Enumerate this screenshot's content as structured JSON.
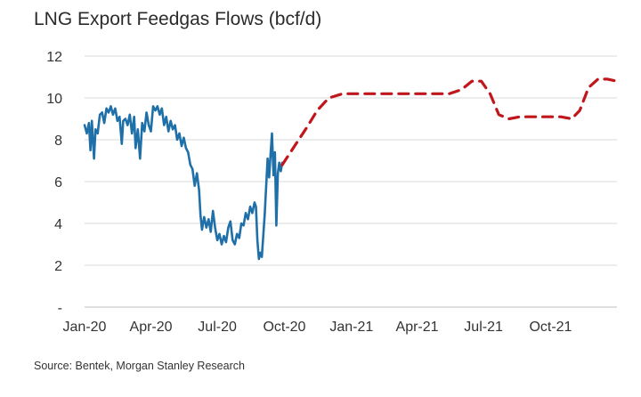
{
  "chart_data": {
    "type": "line",
    "title": "LNG Export Feedgas Flows (bcf/d)",
    "source": "Source: Bentek, Morgan Stanley Research",
    "xlabel": "",
    "ylabel": "",
    "ylim": [
      0,
      12
    ],
    "y_ticks": [
      {
        "value": 0,
        "label": "-"
      },
      {
        "value": 2,
        "label": "2"
      },
      {
        "value": 4,
        "label": "4"
      },
      {
        "value": 6,
        "label": "6"
      },
      {
        "value": 8,
        "label": "8"
      },
      {
        "value": 10,
        "label": "10"
      },
      {
        "value": 12,
        "label": "12"
      }
    ],
    "x_ticks": [
      {
        "date": "2020-01-01",
        "label": "Jan-20"
      },
      {
        "date": "2020-04-01",
        "label": "Apr-20"
      },
      {
        "date": "2020-07-01",
        "label": "Jul-20"
      },
      {
        "date": "2020-10-01",
        "label": "Oct-20"
      },
      {
        "date": "2021-01-01",
        "label": "Jan-21"
      },
      {
        "date": "2021-04-01",
        "label": "Apr-21"
      },
      {
        "date": "2021-07-01",
        "label": "Jul-21"
      },
      {
        "date": "2021-10-01",
        "label": "Oct-21"
      }
    ],
    "xlim": [
      "2020-01-01",
      "2021-12-31"
    ],
    "grid": "horizontal",
    "colors": {
      "historical": "#1f6fa8",
      "forecast": "#c0171d",
      "grid": "#d9d9d9"
    },
    "series": [
      {
        "style": "solid",
        "points": [
          [
            "2020-01-01",
            8.7
          ],
          [
            "2020-01-04",
            8.3
          ],
          [
            "2020-01-07",
            8.8
          ],
          [
            "2020-01-09",
            7.5
          ],
          [
            "2020-01-11",
            8.9
          ],
          [
            "2020-01-14",
            7.1
          ],
          [
            "2020-01-16",
            8.5
          ],
          [
            "2020-01-19",
            8.3
          ],
          [
            "2020-01-22",
            9.2
          ],
          [
            "2020-01-25",
            9.3
          ],
          [
            "2020-01-28",
            8.8
          ],
          [
            "2020-01-31",
            9.5
          ],
          [
            "2020-02-03",
            9.3
          ],
          [
            "2020-02-06",
            9.6
          ],
          [
            "2020-02-09",
            9.2
          ],
          [
            "2020-02-12",
            9.5
          ],
          [
            "2020-02-15",
            8.9
          ],
          [
            "2020-02-18",
            9.1
          ],
          [
            "2020-02-21",
            7.8
          ],
          [
            "2020-02-23",
            8.9
          ],
          [
            "2020-02-26",
            9.0
          ],
          [
            "2020-02-29",
            8.7
          ],
          [
            "2020-03-03",
            9.2
          ],
          [
            "2020-03-06",
            8.3
          ],
          [
            "2020-03-09",
            9.1
          ],
          [
            "2020-03-11",
            7.6
          ],
          [
            "2020-03-14",
            8.5
          ],
          [
            "2020-03-17",
            7.1
          ],
          [
            "2020-03-20",
            8.8
          ],
          [
            "2020-03-23",
            8.4
          ],
          [
            "2020-03-26",
            9.3
          ],
          [
            "2020-03-29",
            8.7
          ],
          [
            "2020-04-01",
            8.4
          ],
          [
            "2020-04-04",
            9.6
          ],
          [
            "2020-04-07",
            9.4
          ],
          [
            "2020-04-10",
            9.6
          ],
          [
            "2020-04-13",
            9.2
          ],
          [
            "2020-04-16",
            9.5
          ],
          [
            "2020-04-19",
            8.7
          ],
          [
            "2020-04-22",
            9.1
          ],
          [
            "2020-04-25",
            8.4
          ],
          [
            "2020-04-28",
            8.9
          ],
          [
            "2020-05-01",
            8.5
          ],
          [
            "2020-05-04",
            8.7
          ],
          [
            "2020-05-07",
            8.0
          ],
          [
            "2020-05-10",
            8.3
          ],
          [
            "2020-05-13",
            7.7
          ],
          [
            "2020-05-16",
            8.1
          ],
          [
            "2020-05-19",
            7.6
          ],
          [
            "2020-05-22",
            7.4
          ],
          [
            "2020-05-25",
            6.8
          ],
          [
            "2020-05-28",
            6.6
          ],
          [
            "2020-05-31",
            5.8
          ],
          [
            "2020-06-03",
            6.4
          ],
          [
            "2020-06-06",
            5.6
          ],
          [
            "2020-06-08",
            4.4
          ],
          [
            "2020-06-10",
            3.7
          ],
          [
            "2020-06-13",
            4.3
          ],
          [
            "2020-06-16",
            3.8
          ],
          [
            "2020-06-19",
            4.2
          ],
          [
            "2020-06-22",
            3.6
          ],
          [
            "2020-06-25",
            4.6
          ],
          [
            "2020-06-28",
            3.8
          ],
          [
            "2020-07-01",
            3.2
          ],
          [
            "2020-07-04",
            3.5
          ],
          [
            "2020-07-07",
            3.0
          ],
          [
            "2020-07-10",
            3.4
          ],
          [
            "2020-07-13",
            3.1
          ],
          [
            "2020-07-16",
            3.8
          ],
          [
            "2020-07-19",
            4.1
          ],
          [
            "2020-07-22",
            3.2
          ],
          [
            "2020-07-25",
            3.0
          ],
          [
            "2020-07-28",
            3.5
          ],
          [
            "2020-07-31",
            3.3
          ],
          [
            "2020-08-03",
            4.0
          ],
          [
            "2020-08-06",
            3.9
          ],
          [
            "2020-08-09",
            4.5
          ],
          [
            "2020-08-12",
            4.2
          ],
          [
            "2020-08-15",
            4.8
          ],
          [
            "2020-08-18",
            4.5
          ],
          [
            "2020-08-21",
            5.0
          ],
          [
            "2020-08-23",
            4.8
          ],
          [
            "2020-08-25",
            3.2
          ],
          [
            "2020-08-27",
            2.3
          ],
          [
            "2020-08-29",
            2.6
          ],
          [
            "2020-08-31",
            2.4
          ],
          [
            "2020-09-02",
            3.4
          ],
          [
            "2020-09-04",
            4.4
          ],
          [
            "2020-09-06",
            5.8
          ],
          [
            "2020-09-08",
            7.1
          ],
          [
            "2020-09-10",
            6.2
          ],
          [
            "2020-09-12",
            7.3
          ],
          [
            "2020-09-14",
            8.3
          ],
          [
            "2020-09-16",
            6.3
          ],
          [
            "2020-09-18",
            7.4
          ],
          [
            "2020-09-20",
            3.9
          ],
          [
            "2020-09-22",
            6.4
          ],
          [
            "2020-09-24",
            6.9
          ],
          [
            "2020-09-26",
            6.5
          ],
          [
            "2020-09-28",
            6.9
          ]
        ]
      },
      {
        "style": "dashed",
        "points": [
          [
            "2020-09-28",
            6.8
          ],
          [
            "2020-10-15",
            7.7
          ],
          [
            "2020-11-01",
            8.6
          ],
          [
            "2020-11-15",
            9.4
          ],
          [
            "2020-12-01",
            10.0
          ],
          [
            "2020-12-20",
            10.2
          ],
          [
            "2021-01-15",
            10.2
          ],
          [
            "2021-02-15",
            10.2
          ],
          [
            "2021-03-15",
            10.2
          ],
          [
            "2021-04-15",
            10.2
          ],
          [
            "2021-05-15",
            10.2
          ],
          [
            "2021-06-01",
            10.4
          ],
          [
            "2021-06-15",
            10.8
          ],
          [
            "2021-06-28",
            10.8
          ],
          [
            "2021-07-10",
            10.2
          ],
          [
            "2021-07-22",
            9.2
          ],
          [
            "2021-08-05",
            9.0
          ],
          [
            "2021-08-20",
            9.1
          ],
          [
            "2021-09-15",
            9.1
          ],
          [
            "2021-10-15",
            9.1
          ],
          [
            "2021-10-30",
            9.0
          ],
          [
            "2021-11-10",
            9.4
          ],
          [
            "2021-11-22",
            10.5
          ],
          [
            "2021-12-05",
            10.9
          ],
          [
            "2021-12-18",
            10.9
          ],
          [
            "2021-12-31",
            10.8
          ]
        ]
      }
    ]
  }
}
